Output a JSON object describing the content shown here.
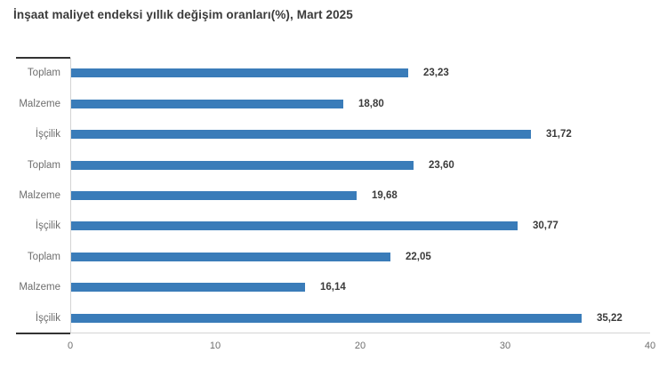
{
  "chart_data": {
    "type": "bar",
    "orientation": "horizontal",
    "title": "İnşaat maliyet endeksi yıllık değişim oranları(%), Mart 2025",
    "categories": [
      "Toplam",
      "Malzeme",
      "İşçilik",
      "Toplam",
      "Malzeme",
      "İşçilik",
      "Toplam",
      "Malzeme",
      "İşçilik"
    ],
    "values": [
      23.23,
      18.8,
      31.72,
      23.6,
      19.68,
      30.77,
      22.05,
      16.14,
      35.22
    ],
    "value_labels": [
      "23,23",
      "18,80",
      "31,72",
      "23,60",
      "19,68",
      "30,77",
      "22,05",
      "16,14",
      "35,22"
    ],
    "xlabel": "",
    "ylabel": "",
    "xlim": [
      0,
      40
    ],
    "x_ticks": [
      0,
      10,
      20,
      30,
      40
    ],
    "x_tick_labels": [
      "0",
      "10",
      "20",
      "30",
      "40"
    ],
    "grid": false,
    "legend": null,
    "colors": {
      "bar": "#3a7cb9",
      "axis_line": "#d4d4d4",
      "cap_line": "#333333",
      "category_label": "#6e6e6e",
      "tick_label": "#6e6e6e",
      "value_label": "#3b3b3b",
      "title": "#3a3a3a"
    }
  }
}
